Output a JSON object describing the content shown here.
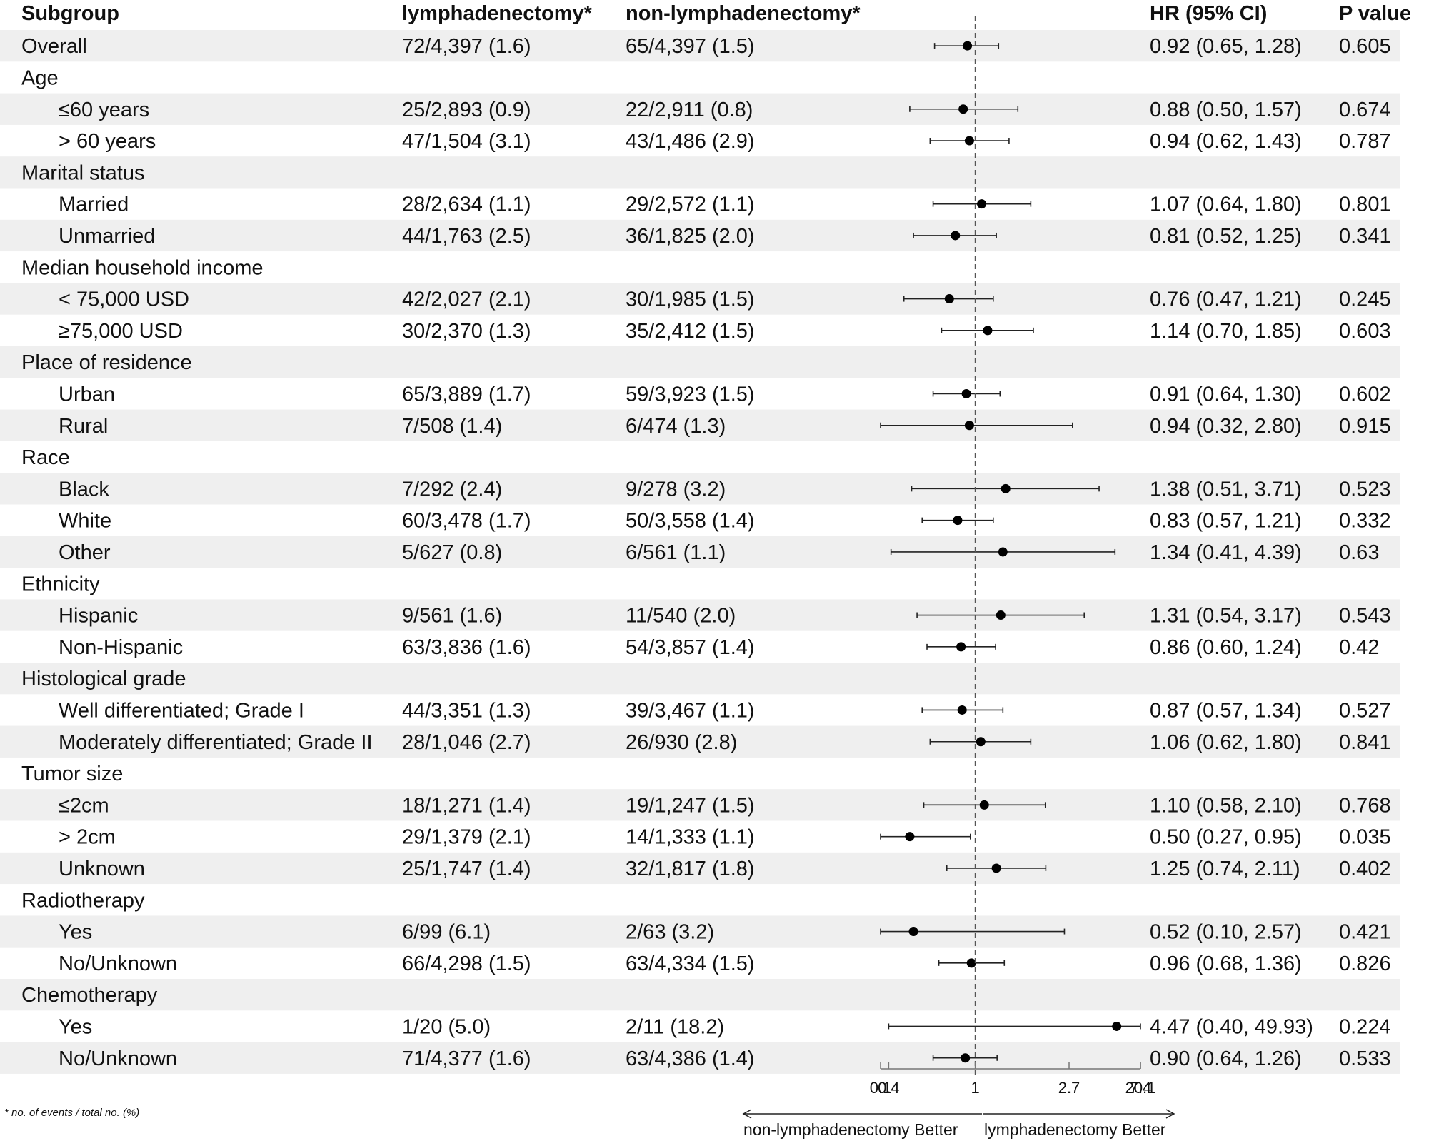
{
  "chart_data": {
    "type": "forest",
    "headers": {
      "subgroup": "Subgroup",
      "treated": "lymphadenectomy*",
      "control": "non-lymphadenectomy*",
      "hr": "HR (95% CI)",
      "p": "P value"
    },
    "rows": [
      {
        "label": "Overall",
        "indent": false,
        "treated": "72/4,397 (1.6)",
        "control": "65/4,397 (1.5)",
        "hr": 0.92,
        "lo": 0.65,
        "hi": 1.28,
        "hr_text": "0.92 (0.65, 1.28)",
        "p": "0.605"
      },
      {
        "label": "Age",
        "indent": false,
        "category": true
      },
      {
        "label": "≤60 years",
        "indent": true,
        "treated": "25/2,893 (0.9)",
        "control": "22/2,911 (0.8)",
        "hr": 0.88,
        "lo": 0.5,
        "hi": 1.57,
        "hr_text": "0.88 (0.50, 1.57)",
        "p": "0.674"
      },
      {
        "label": "> 60 years",
        "indent": true,
        "treated": "47/1,504 (3.1)",
        "control": "43/1,486 (2.9)",
        "hr": 0.94,
        "lo": 0.62,
        "hi": 1.43,
        "hr_text": "0.94 (0.62, 1.43)",
        "p": "0.787"
      },
      {
        "label": "Marital status",
        "indent": false,
        "category": true
      },
      {
        "label": "Married",
        "indent": true,
        "treated": "28/2,634 (1.1)",
        "control": "29/2,572 (1.1)",
        "hr": 1.07,
        "lo": 0.64,
        "hi": 1.8,
        "hr_text": "1.07 (0.64, 1.80)",
        "p": "0.801"
      },
      {
        "label": "Unmarried",
        "indent": true,
        "treated": "44/1,763 (2.5)",
        "control": "36/1,825 (2.0)",
        "hr": 0.81,
        "lo": 0.52,
        "hi": 1.25,
        "hr_text": "0.81 (0.52, 1.25)",
        "p": "0.341"
      },
      {
        "label": "Median household income",
        "indent": false,
        "category": true
      },
      {
        "label": "< 75,000 USD",
        "indent": true,
        "treated": "42/2,027 (2.1)",
        "control": "30/1,985 (1.5)",
        "hr": 0.76,
        "lo": 0.47,
        "hi": 1.21,
        "hr_text": "0.76 (0.47, 1.21)",
        "p": "0.245"
      },
      {
        "label": "≥75,000 USD",
        "indent": true,
        "treated": "30/2,370 (1.3)",
        "control": "35/2,412 (1.5)",
        "hr": 1.14,
        "lo": 0.7,
        "hi": 1.85,
        "hr_text": "1.14 (0.70, 1.85)",
        "p": "0.603"
      },
      {
        "label": "Place of residence",
        "indent": false,
        "category": true
      },
      {
        "label": "Urban",
        "indent": true,
        "treated": "65/3,889 (1.7)",
        "control": "59/3,923 (1.5)",
        "hr": 0.91,
        "lo": 0.64,
        "hi": 1.3,
        "hr_text": "0.91 (0.64, 1.30)",
        "p": "0.602"
      },
      {
        "label": "Rural",
        "indent": true,
        "treated": "7/508 (1.4)",
        "control": "6/474 (1.3)",
        "hr": 0.94,
        "lo": 0.32,
        "hi": 2.8,
        "hr_text": "0.94 (0.32, 2.80)",
        "p": "0.915"
      },
      {
        "label": "Race",
        "indent": false,
        "category": true
      },
      {
        "label": "Black",
        "indent": true,
        "treated": "7/292 (2.4)",
        "control": "9/278 (3.2)",
        "hr": 1.38,
        "lo": 0.51,
        "hi": 3.71,
        "hr_text": "1.38 (0.51, 3.71)",
        "p": "0.523"
      },
      {
        "label": "White",
        "indent": true,
        "treated": "60/3,478 (1.7)",
        "control": "50/3,558 (1.4)",
        "hr": 0.83,
        "lo": 0.57,
        "hi": 1.21,
        "hr_text": "0.83 (0.57, 1.21)",
        "p": "0.332"
      },
      {
        "label": "Other",
        "indent": true,
        "treated": "5/627 (0.8)",
        "control": "6/561 (1.1)",
        "hr": 1.34,
        "lo": 0.41,
        "hi": 4.39,
        "hr_text": "1.34 (0.41, 4.39)",
        "p": "0.63"
      },
      {
        "label": "Ethnicity",
        "indent": false,
        "category": true
      },
      {
        "label": "Hispanic",
        "indent": true,
        "treated": "9/561 (1.6)",
        "control": "11/540 (2.0)",
        "hr": 1.31,
        "lo": 0.54,
        "hi": 3.17,
        "hr_text": "1.31 (0.54, 3.17)",
        "p": "0.543"
      },
      {
        "label": "Non-Hispanic",
        "indent": true,
        "treated": "63/3,836 (1.6)",
        "control": "54/3,857 (1.4)",
        "hr": 0.86,
        "lo": 0.6,
        "hi": 1.24,
        "hr_text": "0.86 (0.60, 1.24)",
        "p": "0.42"
      },
      {
        "label": "Histological grade",
        "indent": false,
        "category": true
      },
      {
        "label": "Well differentiated; Grade I",
        "indent": true,
        "treated": "44/3,351 (1.3)",
        "control": "39/3,467 (1.1)",
        "hr": 0.87,
        "lo": 0.57,
        "hi": 1.34,
        "hr_text": "0.87 (0.57, 1.34)",
        "p": "0.527"
      },
      {
        "label": "Moderately differentiated; Grade II",
        "indent": true,
        "treated": "28/1,046 (2.7)",
        "control": "26/930 (2.8)",
        "hr": 1.06,
        "lo": 0.62,
        "hi": 1.8,
        "hr_text": "1.06 (0.62, 1.80)",
        "p": "0.841"
      },
      {
        "label": "Tumor size",
        "indent": false,
        "category": true
      },
      {
        "label": "≤2cm",
        "indent": true,
        "treated": "18/1,271 (1.4)",
        "control": "19/1,247 (1.5)",
        "hr": 1.1,
        "lo": 0.58,
        "hi": 2.1,
        "hr_text": "1.10 (0.58, 2.10)",
        "p": "0.768"
      },
      {
        "label": "> 2cm",
        "indent": true,
        "treated": "29/1,379 (2.1)",
        "control": "14/1,333 (1.1)",
        "hr": 0.5,
        "lo": 0.27,
        "hi": 0.95,
        "hr_text": "0.50 (0.27, 0.95)",
        "p": "0.035"
      },
      {
        "label": "Unknown",
        "indent": true,
        "treated": "25/1,747 (1.4)",
        "control": "32/1,817 (1.8)",
        "hr": 1.25,
        "lo": 0.74,
        "hi": 2.11,
        "hr_text": "1.25 (0.74, 2.11)",
        "p": "0.402"
      },
      {
        "label": "Radiotherapy",
        "indent": false,
        "category": true
      },
      {
        "label": "Yes",
        "indent": true,
        "treated": "6/99 (6.1)",
        "control": "2/63 (3.2)",
        "hr": 0.52,
        "lo": 0.1,
        "hi": 2.57,
        "hr_text": "0.52 (0.10, 2.57)",
        "p": "0.421"
      },
      {
        "label": "No/Unknown",
        "indent": true,
        "treated": "66/4,298 (1.5)",
        "control": "63/4,334 (1.5)",
        "hr": 0.96,
        "lo": 0.68,
        "hi": 1.36,
        "hr_text": "0.96 (0.68, 1.36)",
        "p": "0.826"
      },
      {
        "label": "Chemotherapy",
        "indent": false,
        "category": true
      },
      {
        "label": "Yes",
        "indent": true,
        "treated": "1/20 (5.0)",
        "control": "2/11 (18.2)",
        "hr": 4.47,
        "lo": 0.4,
        "hi": 49.93,
        "hr_text": "4.47 (0.40, 49.93)",
        "p": "0.224"
      },
      {
        "label": "No/Unknown",
        "indent": true,
        "treated": "71/4,377 (1.6)",
        "control": "63/4,386 (1.4)",
        "hr": 0.9,
        "lo": 0.64,
        "hi": 1.26,
        "hr_text": "0.90 (0.64, 1.26)",
        "p": "0.533"
      }
    ],
    "x_axis": {
      "scale": "log",
      "ticks": [
        0.1,
        0.4,
        1,
        2.7,
        7.4,
        20.1
      ],
      "tick_labels": [
        "0.1",
        "0.4",
        "1",
        "2.7",
        "7.4",
        "20.1"
      ],
      "reference_line": 1
    },
    "direction_left": "non-lymphadenectomy Better",
    "direction_right": "lymphadenectomy Better",
    "footnote": "* no. of events / total no. (%)"
  },
  "colors": {
    "band": "#efefef",
    "text": "#111111",
    "line": "#222222",
    "axis": "#777777",
    "reference": "#555555"
  }
}
